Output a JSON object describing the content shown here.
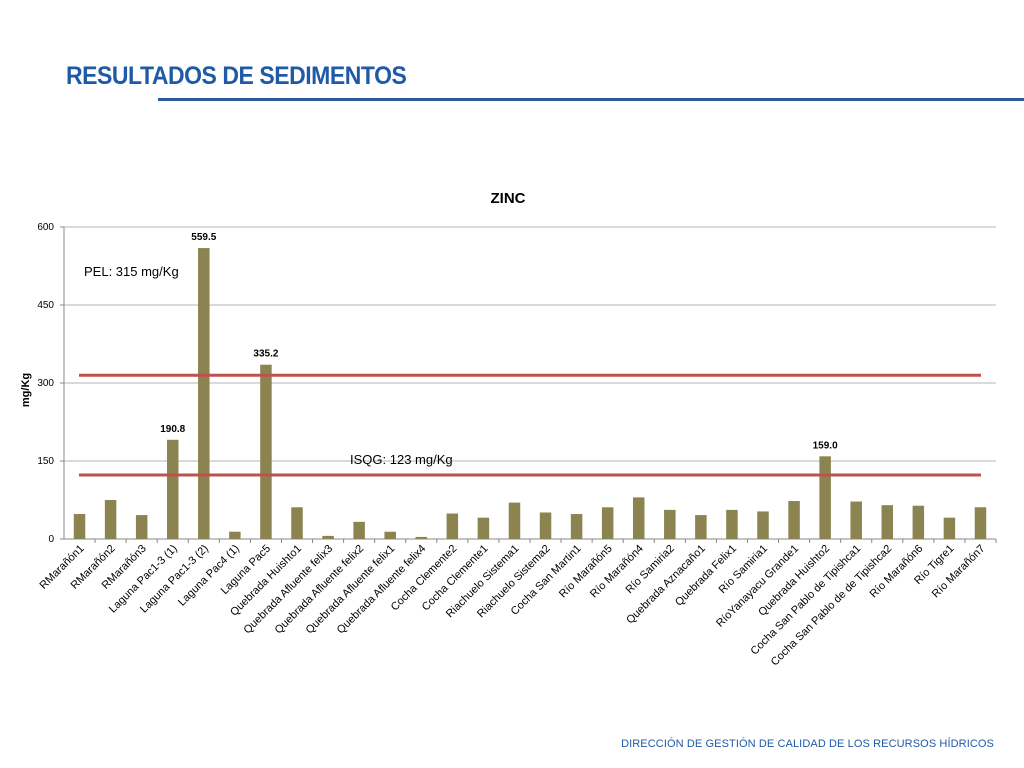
{
  "slide": {
    "title": "RESULTADOS DE SEDIMENTOS",
    "footer": "DIRECCIÓN DE GESTIÓN DE CALIDAD DE LOS RECURSOS HÍDRICOS"
  },
  "colors": {
    "title": "#1f5aa6",
    "bar": "#8b8450",
    "threshold": "#c0504d",
    "grid": "#b4b4b4"
  },
  "chart_data": {
    "type": "bar",
    "title": "ZINC",
    "xlabel": "",
    "ylabel": "mg/Kg",
    "ylim": [
      0,
      600
    ],
    "yticks": [
      0,
      150,
      300,
      450,
      600
    ],
    "grid": true,
    "legend": "none",
    "categories": [
      "RMarañón1",
      "RMarañón2",
      "RMarañón3",
      "Laguna Pac1-3 (1)",
      "Laguna Pac1-3 (2)",
      "Laguna Pac4 (1)",
      "Laguna Pac5",
      "Quebrada Huishto1",
      "Quebrada Afluente felix3",
      "Quebrada Afluente felix2",
      "Quebrada Afluente felix1",
      "Quebrada Afluente felix4",
      "Cocha Clemente2",
      "Cocha Clemente1",
      "Riachuelo Sistema1",
      "Riachuelo Sistema2",
      "Cocha San Martin1",
      "Río Marañón5",
      "Río Marañón4",
      "Río Samiria2",
      "Quebrada Aznacaño1",
      "Quebrada Felix1",
      "Río Samiria1",
      "RíoYanayacu Grande1",
      "Quebrada Huishto2",
      "Cocha San Pablo de Tipishca1",
      "Cocha San Pablo de de Tipishca2",
      "Río Marañón6",
      "Río Tigre1",
      "Río Marañón7"
    ],
    "values": [
      48,
      75,
      46,
      190.8,
      559.5,
      14,
      335.2,
      61,
      6,
      33,
      14,
      4,
      49,
      41,
      70,
      51,
      48,
      61,
      80,
      56,
      46,
      56,
      53,
      73,
      159.0,
      72,
      65,
      64,
      41,
      61
    ],
    "data_labels": [
      {
        "index": 3,
        "text": "190.8"
      },
      {
        "index": 4,
        "text": "559.5"
      },
      {
        "index": 6,
        "text": "335.2"
      },
      {
        "index": 24,
        "text": "159.0"
      }
    ],
    "thresholds": [
      {
        "name": "PEL",
        "value": 315,
        "label": "PEL: 315 mg/Kg"
      },
      {
        "name": "ISQG",
        "value": 123,
        "label": "ISQG: 123 mg/Kg"
      }
    ]
  }
}
